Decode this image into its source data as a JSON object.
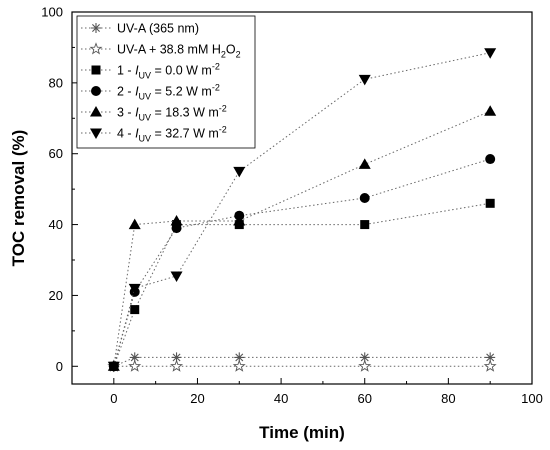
{
  "chart_data": {
    "type": "line",
    "xlabel": "Time (min)",
    "ylabel": "TOC removal (%)",
    "xlim": [
      -10,
      100
    ],
    "ylim": [
      -5,
      100
    ],
    "xticks": [
      0,
      20,
      40,
      60,
      80,
      100
    ],
    "yticks": [
      0,
      20,
      40,
      60,
      80,
      100
    ],
    "x": [
      0,
      5,
      15,
      30,
      60,
      90
    ],
    "line_style": "dotted",
    "grid": false,
    "legend_position": "top-left",
    "series": [
      {
        "name": "UV-A (365 nm)",
        "marker": "asterisk",
        "color": "#555555",
        "values": [
          0,
          2.5,
          2.5,
          2.5,
          2.5,
          2.5
        ]
      },
      {
        "name": "UV-A + 38.8 mM H2O2",
        "marker": "star-open",
        "color": "#555555",
        "values": [
          0,
          0,
          0,
          0,
          0,
          0
        ]
      },
      {
        "name": "1 - IUV = 0.0 W m-2",
        "marker": "square",
        "color": "#000000",
        "values": [
          0,
          16,
          40,
          40,
          40,
          46
        ]
      },
      {
        "name": "2 - IUV = 5.2 W m-2",
        "marker": "circle",
        "color": "#000000",
        "values": [
          0,
          21,
          39,
          42.5,
          47.5,
          58.5
        ]
      },
      {
        "name": "3 - IUV = 18.3 W m-2",
        "marker": "triangle-up",
        "color": "#000000",
        "values": [
          0,
          40,
          41,
          41,
          57,
          72
        ]
      },
      {
        "name": "4 - IUV = 32.7 W m-2",
        "marker": "triangle-down",
        "color": "#000000",
        "values": [
          0,
          22,
          25.5,
          55,
          81,
          88.5
        ]
      }
    ]
  }
}
